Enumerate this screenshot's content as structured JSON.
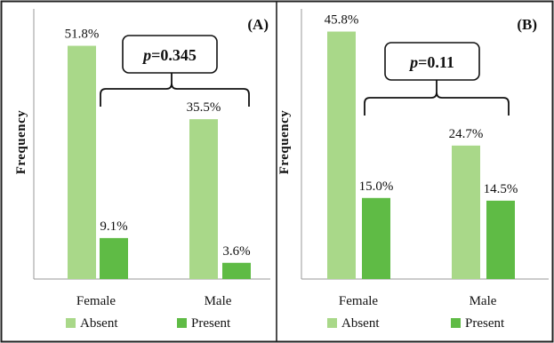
{
  "colors": {
    "absent": "#a9d889",
    "present": "#5fbb45",
    "axis": "#999999",
    "border": "#222222"
  },
  "chart_data": [
    {
      "type": "bar",
      "panel": "(A)",
      "title": "",
      "xlabel": "",
      "ylabel": "Frequency",
      "ylim": [
        0,
        60
      ],
      "categories": [
        "Female",
        "Male"
      ],
      "series": [
        {
          "name": "Absent",
          "values": [
            51.8,
            35.5
          ],
          "labels": [
            "51.8%",
            "35.5%"
          ]
        },
        {
          "name": "Present",
          "values": [
            9.1,
            3.6
          ],
          "labels": [
            "9.1%",
            "3.6%"
          ]
        }
      ],
      "annotation": {
        "p_label": "p",
        "p_value": "=0.345"
      },
      "grid": false,
      "legend": "bottom"
    },
    {
      "type": "bar",
      "panel": "(B)",
      "title": "",
      "xlabel": "",
      "ylabel": "Frequency",
      "ylim": [
        0,
        50
      ],
      "categories": [
        "Female",
        "Male"
      ],
      "series": [
        {
          "name": "Absent",
          "values": [
            45.8,
            24.7
          ],
          "labels": [
            "45.8%",
            "24.7%"
          ]
        },
        {
          "name": "Present",
          "values": [
            15.0,
            14.5
          ],
          "labels": [
            "15.0%",
            "14.5%"
          ]
        }
      ],
      "annotation": {
        "p_label": "p",
        "p_value": "=0.11"
      },
      "grid": false,
      "legend": "bottom"
    }
  ]
}
